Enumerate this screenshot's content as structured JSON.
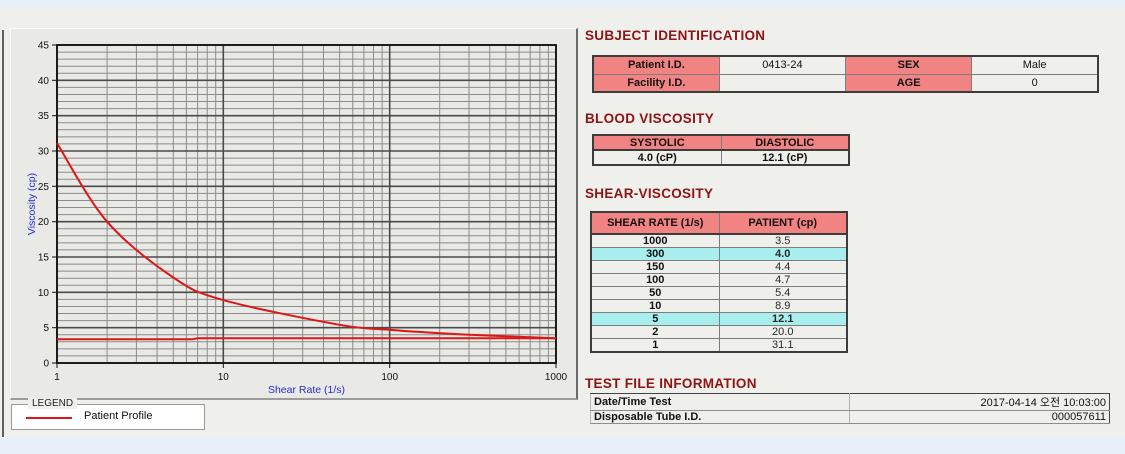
{
  "titles": {
    "subject": "SUBJECT IDENTIFICATION",
    "blood": "BLOOD VISCOSITY",
    "shear": "SHEAR-VISCOSITY",
    "testfile": "TEST FILE INFORMATION"
  },
  "subject_table": {
    "rows": [
      {
        "label1": "Patient I.D.",
        "value1": "0413-24",
        "label2": "SEX",
        "value2": "Male"
      },
      {
        "label1": "Facility I.D.",
        "value1": "",
        "label2": "AGE",
        "value2": "0"
      }
    ]
  },
  "blood_table": {
    "headers": [
      "SYSTOLIC",
      "DIASTOLIC"
    ],
    "values": [
      "4.0 (cP)",
      "12.1 (cP)"
    ]
  },
  "shear_table": {
    "headers": [
      "SHEAR RATE (1/s)",
      "PATIENT (cp)"
    ],
    "rows": [
      {
        "rate": "1000",
        "patient": "3.5",
        "highlight": false
      },
      {
        "rate": "300",
        "patient": "4.0",
        "highlight": true
      },
      {
        "rate": "150",
        "patient": "4.4",
        "highlight": false
      },
      {
        "rate": "100",
        "patient": "4.7",
        "highlight": false
      },
      {
        "rate": "50",
        "patient": "5.4",
        "highlight": false
      },
      {
        "rate": "10",
        "patient": "8.9",
        "highlight": false
      },
      {
        "rate": "5",
        "patient": "12.1",
        "highlight": true
      },
      {
        "rate": "2",
        "patient": "20.0",
        "highlight": false
      },
      {
        "rate": "1",
        "patient": "31.1",
        "highlight": false
      }
    ]
  },
  "testfile_table": {
    "rows": [
      {
        "label": "Date/Time Test",
        "value": "2017-04-14  오전 10:03:00"
      },
      {
        "label": "Disposable Tube I.D.",
        "value": "000057611"
      }
    ]
  },
  "legend": {
    "title": "LEGEND",
    "series": "Patient Profile"
  },
  "colors": {
    "accent_salmon": "#f28383",
    "highlight_cyan": "#a8eeee",
    "title_maroon": "#8e1414",
    "curve_red": "#dd1717",
    "axis_label_blue": "#2a2acc"
  },
  "chart_data": {
    "type": "line",
    "title": "",
    "xlabel": "Shear Rate (1/s)",
    "ylabel": "Viscosity (cp)",
    "x_scale": "log",
    "xlim": [
      1,
      1000
    ],
    "ylim": [
      0,
      45
    ],
    "x_major_ticks": [
      1,
      10,
      100,
      1000
    ],
    "y_major_ticks": [
      0,
      5,
      10,
      15,
      20,
      25,
      30,
      35,
      40,
      45
    ],
    "grid": true,
    "legend_position": "below-left",
    "series": [
      {
        "name": "Patient Profile",
        "color": "#dd1717",
        "smooth": true,
        "x": [
          1,
          2,
          5,
          10,
          50,
          100,
          150,
          300,
          1000
        ],
        "y": [
          31.1,
          20.0,
          12.1,
          8.9,
          5.4,
          4.7,
          4.4,
          4.0,
          3.5
        ]
      },
      {
        "name": "baseline",
        "color": "#dd1717",
        "smooth": false,
        "x": [
          1,
          6.5,
          7,
          1000
        ],
        "y": [
          3.35,
          3.35,
          3.5,
          3.5
        ]
      }
    ]
  }
}
